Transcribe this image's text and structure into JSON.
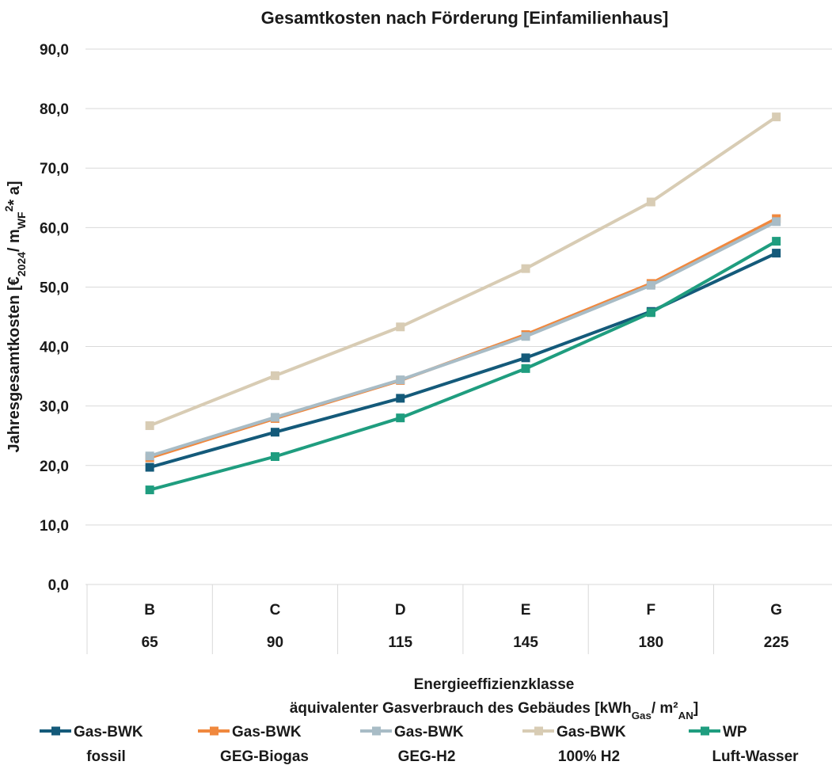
{
  "chart_data": {
    "type": "line",
    "title": "Gesamtkosten nach Förderung [Einfamilienhaus]",
    "ylabel": {
      "parts": [
        {
          "text": "Jahresgesamtkosten [€"
        },
        {
          "text": "2024",
          "sub": true
        },
        {
          "text": "/ m"
        },
        {
          "text": "WF",
          "sub": true
        },
        {
          "text": "2",
          "sup": true
        },
        {
          "text": "* a]"
        }
      ]
    },
    "xlabel": {
      "line1": "Energieeffizienzklasse",
      "line2": {
        "parts": [
          {
            "text": "äquivalenter Gasverbrauch des Gebäudes [kWh"
          },
          {
            "text": "Gas",
            "sub": true
          },
          {
            "text": "/ m²"
          },
          {
            "text": "AN",
            "sub": true
          },
          {
            "text": "]"
          }
        ]
      }
    },
    "categories": [
      "B",
      "C",
      "D",
      "E",
      "F",
      "G"
    ],
    "categories2": [
      "65",
      "90",
      "115",
      "145",
      "180",
      "225"
    ],
    "ylim": [
      0,
      90
    ],
    "yticks": [
      0,
      10,
      20,
      30,
      40,
      50,
      60,
      70,
      80,
      90
    ],
    "ytick_labels": [
      "0,0",
      "10,0",
      "20,0",
      "30,0",
      "40,0",
      "50,0",
      "60,0",
      "70,0",
      "80,0",
      "90,0"
    ],
    "grid": true,
    "legend_position": "bottom",
    "series": [
      {
        "name_line1": "Gas-BWK",
        "name_line2": "fossil",
        "color": "#145a7a",
        "values": [
          19.7,
          25.6,
          31.3,
          38.1,
          45.9,
          55.7
        ]
      },
      {
        "name_line1": "Gas-BWK",
        "name_line2": "GEG-Biogas",
        "color": "#f0883e",
        "values": [
          21.3,
          27.9,
          34.3,
          42.0,
          50.6,
          61.5
        ]
      },
      {
        "name_line1": "Gas-BWK",
        "name_line2": "GEG-H2",
        "color": "#a8bcc6",
        "values": [
          21.6,
          28.1,
          34.4,
          41.7,
          50.3,
          61.0
        ]
      },
      {
        "name_line1": "Gas-BWK",
        "name_line2": "100% H2",
        "color": "#d8ccb4",
        "values": [
          26.7,
          35.1,
          43.3,
          53.1,
          64.3,
          78.6
        ]
      },
      {
        "name_line1": "WP",
        "name_line2": "Luft-Wasser",
        "color": "#1f9d7f",
        "values": [
          15.9,
          21.5,
          28.0,
          36.3,
          45.7,
          57.7
        ]
      }
    ]
  }
}
